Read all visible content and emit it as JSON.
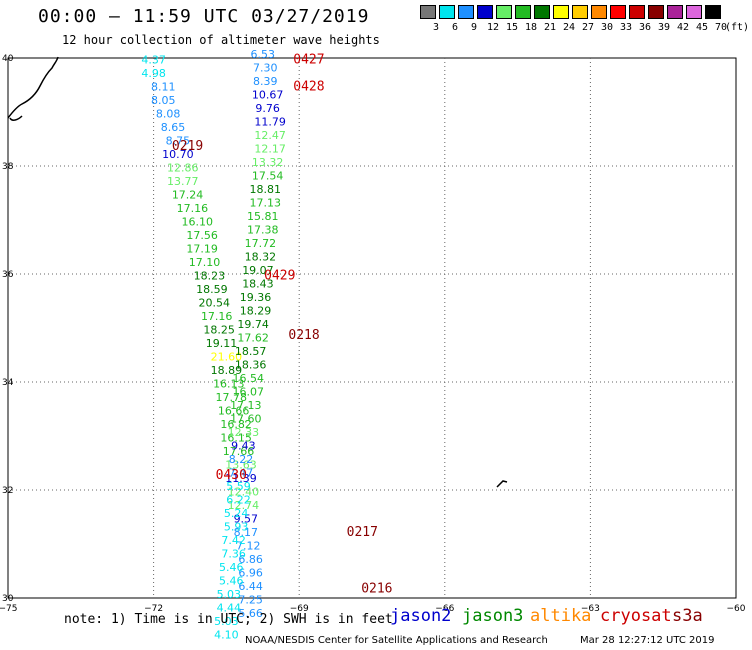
{
  "header": {
    "title": "00:00 – 11:59 UTC 03/27/2019",
    "subtitle": "12 hour collection of altimeter wave heights"
  },
  "color_scale": {
    "unit": "(ft)",
    "bins": [
      {
        "label": "3",
        "color": "#777777"
      },
      {
        "label": "6",
        "color": "#00e5ee"
      },
      {
        "label": "9",
        "color": "#1e90ff"
      },
      {
        "label": "12",
        "color": "#0000cd"
      },
      {
        "label": "15",
        "color": "#66ee66"
      },
      {
        "label": "18",
        "color": "#22bb22"
      },
      {
        "label": "21",
        "color": "#007700"
      },
      {
        "label": "24",
        "color": "#ffff00"
      },
      {
        "label": "27",
        "color": "#ffcc00"
      },
      {
        "label": "30",
        "color": "#ff8800"
      },
      {
        "label": "33",
        "color": "#ff0000"
      },
      {
        "label": "36",
        "color": "#cc0000"
      },
      {
        "label": "39",
        "color": "#880000"
      },
      {
        "label": "42",
        "color": "#aa2299"
      },
      {
        "label": "45",
        "color": "#dd66dd"
      },
      {
        "label": "70",
        "color": "#000000"
      }
    ]
  },
  "axes": {
    "lon_ticks": [
      "−75",
      "−72",
      "−69",
      "−66",
      "−63",
      "−60"
    ],
    "lat_ticks": [
      "40",
      "38",
      "36",
      "34",
      "32",
      "30"
    ],
    "lon_range": [
      -75,
      -60
    ],
    "lat_range": [
      30,
      40
    ]
  },
  "passes": [
    {
      "label": "0427",
      "color": "#cc0000",
      "lat": 39.9,
      "lon": -68.8
    },
    {
      "label": "0428",
      "color": "#cc0000",
      "lat": 39.4,
      "lon": -68.8
    },
    {
      "label": "0219",
      "color": "#880000",
      "lat": 38.3,
      "lon": -71.3
    },
    {
      "label": "0429",
      "color": "#cc0000",
      "lat": 35.9,
      "lon": -69.4
    },
    {
      "label": "0218",
      "color": "#880000",
      "lat": 34.8,
      "lon": -68.9
    },
    {
      "label": "0430",
      "color": "#cc0000",
      "lat": 32.2,
      "lon": -70.4
    },
    {
      "label": "0217",
      "color": "#880000",
      "lat": 31.15,
      "lon": -67.7
    },
    {
      "label": "0216",
      "color": "#880000",
      "lat": 30.1,
      "lon": -67.4
    }
  ],
  "tracks": [
    {
      "name": "A",
      "readings": [
        {
          "v": "4.37",
          "c": "#00e5ee",
          "lat": 39.9,
          "lon": -72.0
        },
        {
          "v": "4.98",
          "c": "#00e5ee",
          "lat": 39.65,
          "lon": -72.0
        },
        {
          "v": "8.11",
          "c": "#1e90ff",
          "lat": 39.4,
          "lon": -71.8
        },
        {
          "v": "8.05",
          "c": "#1e90ff",
          "lat": 39.15,
          "lon": -71.8
        },
        {
          "v": "8.08",
          "c": "#1e90ff",
          "lat": 38.9,
          "lon": -71.7
        },
        {
          "v": "8.65",
          "c": "#1e90ff",
          "lat": 38.65,
          "lon": -71.6
        },
        {
          "v": "8.75",
          "c": "#1e90ff",
          "lat": 38.4,
          "lon": -71.5
        },
        {
          "v": "10.70",
          "c": "#0000cd",
          "lat": 38.15,
          "lon": -71.5
        },
        {
          "v": "12.86",
          "c": "#66ee66",
          "lat": 37.9,
          "lon": -71.4
        },
        {
          "v": "13.77",
          "c": "#66ee66",
          "lat": 37.65,
          "lon": -71.4
        },
        {
          "v": "17.24",
          "c": "#22bb22",
          "lat": 37.4,
          "lon": -71.3
        },
        {
          "v": "17.16",
          "c": "#22bb22",
          "lat": 37.15,
          "lon": -71.2
        },
        {
          "v": "16.10",
          "c": "#22bb22",
          "lat": 36.9,
          "lon": -71.1
        },
        {
          "v": "17.56",
          "c": "#22bb22",
          "lat": 36.65,
          "lon": -71.0
        },
        {
          "v": "17.19",
          "c": "#22bb22",
          "lat": 36.4,
          "lon": -71.0
        },
        {
          "v": "17.10",
          "c": "#22bb22",
          "lat": 36.15,
          "lon": -70.95
        },
        {
          "v": "18.23",
          "c": "#007700",
          "lat": 35.9,
          "lon": -70.85
        },
        {
          "v": "18.59",
          "c": "#007700",
          "lat": 35.65,
          "lon": -70.8
        },
        {
          "v": "20.54",
          "c": "#007700",
          "lat": 35.4,
          "lon": -70.75
        },
        {
          "v": "17.16",
          "c": "#22bb22",
          "lat": 35.15,
          "lon": -70.7
        },
        {
          "v": "18.25",
          "c": "#007700",
          "lat": 34.9,
          "lon": -70.65
        },
        {
          "v": "19.11",
          "c": "#007700",
          "lat": 34.65,
          "lon": -70.6
        },
        {
          "v": "21.60",
          "c": "#ffff00",
          "lat": 34.4,
          "lon": -70.5
        },
        {
          "v": "18.89",
          "c": "#007700",
          "lat": 34.15,
          "lon": -70.5
        },
        {
          "v": "16.13",
          "c": "#22bb22",
          "lat": 33.9,
          "lon": -70.45
        },
        {
          "v": "17.78",
          "c": "#22bb22",
          "lat": 33.65,
          "lon": -70.4
        },
        {
          "v": "16.66",
          "c": "#22bb22",
          "lat": 33.4,
          "lon": -70.35
        },
        {
          "v": "16.82",
          "c": "#22bb22",
          "lat": 33.15,
          "lon": -70.3
        },
        {
          "v": "16.15",
          "c": "#22bb22",
          "lat": 32.9,
          "lon": -70.3
        },
        {
          "v": "17.66",
          "c": "#22bb22",
          "lat": 32.65,
          "lon": -70.25
        },
        {
          "v": "13.63",
          "c": "#66ee66",
          "lat": 32.4,
          "lon": -70.2
        },
        {
          "v": "11.39",
          "c": "#0000cd",
          "lat": 32.15,
          "lon": -70.2
        },
        {
          "v": "12.40",
          "c": "#66ee66",
          "lat": 31.9,
          "lon": -70.15
        },
        {
          "v": "12.74",
          "c": "#66ee66",
          "lat": 31.65,
          "lon": -70.15
        },
        {
          "v": "9.57",
          "c": "#0000cd",
          "lat": 31.4,
          "lon": -70.1
        },
        {
          "v": "8.17",
          "c": "#1e90ff",
          "lat": 31.15,
          "lon": -70.1
        },
        {
          "v": "7.12",
          "c": "#1e90ff",
          "lat": 30.9,
          "lon": -70.05
        },
        {
          "v": "6.86",
          "c": "#1e90ff",
          "lat": 30.65,
          "lon": -70.0
        },
        {
          "v": "6.96",
          "c": "#1e90ff",
          "lat": 30.4,
          "lon": -70.0
        },
        {
          "v": "6.44",
          "c": "#1e90ff",
          "lat": 30.15,
          "lon": -70.0
        },
        {
          "v": "7.25",
          "c": "#1e90ff",
          "lat": 29.9,
          "lon": -70.0
        },
        {
          "v": "5.66",
          "c": "#1e90ff",
          "lat": 29.65,
          "lon": -70.0
        }
      ]
    },
    {
      "name": "B",
      "readings": [
        {
          "v": "6.53",
          "c": "#1e90ff",
          "lat": 40.0,
          "lon": -69.75
        },
        {
          "v": "7.30",
          "c": "#1e90ff",
          "lat": 39.75,
          "lon": -69.7
        },
        {
          "v": "8.39",
          "c": "#1e90ff",
          "lat": 39.5,
          "lon": -69.7
        },
        {
          "v": "10.67",
          "c": "#0000cd",
          "lat": 39.25,
          "lon": -69.65
        },
        {
          "v": "9.76",
          "c": "#0000cd",
          "lat": 39.0,
          "lon": -69.65
        },
        {
          "v": "11.79",
          "c": "#0000cd",
          "lat": 38.75,
          "lon": -69.6
        },
        {
          "v": "12.47",
          "c": "#66ee66",
          "lat": 38.5,
          "lon": -69.6
        },
        {
          "v": "12.17",
          "c": "#66ee66",
          "lat": 38.25,
          "lon": -69.6
        },
        {
          "v": "13.32",
          "c": "#66ee66",
          "lat": 38.0,
          "lon": -69.65
        },
        {
          "v": "17.54",
          "c": "#22bb22",
          "lat": 37.75,
          "lon": -69.65
        },
        {
          "v": "18.81",
          "c": "#007700",
          "lat": 37.5,
          "lon": -69.7
        },
        {
          "v": "17.13",
          "c": "#22bb22",
          "lat": 37.25,
          "lon": -69.7
        },
        {
          "v": "15.81",
          "c": "#22bb22",
          "lat": 37.0,
          "lon": -69.75
        },
        {
          "v": "17.38",
          "c": "#22bb22",
          "lat": 36.75,
          "lon": -69.75
        },
        {
          "v": "17.72",
          "c": "#22bb22",
          "lat": 36.5,
          "lon": -69.8
        },
        {
          "v": "18.32",
          "c": "#007700",
          "lat": 36.25,
          "lon": -69.8
        },
        {
          "v": "19.07",
          "c": "#007700",
          "lat": 36.0,
          "lon": -69.85
        },
        {
          "v": "18.43",
          "c": "#007700",
          "lat": 35.75,
          "lon": -69.85
        },
        {
          "v": "19.36",
          "c": "#007700",
          "lat": 35.5,
          "lon": -69.9
        },
        {
          "v": "18.29",
          "c": "#007700",
          "lat": 35.25,
          "lon": -69.9
        },
        {
          "v": "19.74",
          "c": "#007700",
          "lat": 35.0,
          "lon": -69.95
        },
        {
          "v": "17.62",
          "c": "#22bb22",
          "lat": 34.75,
          "lon": -69.95
        },
        {
          "v": "18.57",
          "c": "#007700",
          "lat": 34.5,
          "lon": -70.0
        },
        {
          "v": "18.36",
          "c": "#007700",
          "lat": 34.25,
          "lon": -70.0
        },
        {
          "v": "16.54",
          "c": "#22bb22",
          "lat": 34.0,
          "lon": -70.05
        },
        {
          "v": "16.07",
          "c": "#22bb22",
          "lat": 33.75,
          "lon": -70.05
        },
        {
          "v": "17.13",
          "c": "#22bb22",
          "lat": 33.5,
          "lon": -70.1
        },
        {
          "v": "17.60",
          "c": "#22bb22",
          "lat": 33.25,
          "lon": -70.1
        },
        {
          "v": "12.33",
          "c": "#66ee66",
          "lat": 33.0,
          "lon": -70.15
        },
        {
          "v": "9.43",
          "c": "#0000cd",
          "lat": 32.75,
          "lon": -70.15
        },
        {
          "v": "8.22",
          "c": "#1e90ff",
          "lat": 32.5,
          "lon": -70.2
        },
        {
          "v": "7.47",
          "c": "#1e90ff",
          "lat": 32.25,
          "lon": -70.2
        },
        {
          "v": "5.59",
          "c": "#00e5ee",
          "lat": 32.0,
          "lon": -70.25
        },
        {
          "v": "6.22",
          "c": "#00e5ee",
          "lat": 31.75,
          "lon": -70.25
        },
        {
          "v": "5.24",
          "c": "#00e5ee",
          "lat": 31.5,
          "lon": -70.3
        },
        {
          "v": "5.93",
          "c": "#00e5ee",
          "lat": 31.25,
          "lon": -70.3
        },
        {
          "v": "7.42",
          "c": "#00e5ee",
          "lat": 31.0,
          "lon": -70.35
        },
        {
          "v": "7.36",
          "c": "#00e5ee",
          "lat": 30.75,
          "lon": -70.35
        },
        {
          "v": "5.46",
          "c": "#00e5ee",
          "lat": 30.5,
          "lon": -70.4
        },
        {
          "v": "5.46",
          "c": "#00e5ee",
          "lat": 30.25,
          "lon": -70.4
        },
        {
          "v": "5.03",
          "c": "#00e5ee",
          "lat": 30.0,
          "lon": -70.45
        },
        {
          "v": "4.44",
          "c": "#00e5ee",
          "lat": 29.75,
          "lon": -70.45
        },
        {
          "v": "5.03",
          "c": "#00e5ee",
          "lat": 29.5,
          "lon": -70.5
        },
        {
          "v": "4.10",
          "c": "#00e5ee",
          "lat": 29.25,
          "lon": -70.5
        }
      ]
    }
  ],
  "footer": {
    "note": "note: 1) Time is in UTC; 2) SWH is in feet",
    "satellites": [
      {
        "label": "jason2",
        "color": "#0000cc"
      },
      {
        "label": "jason3",
        "color": "#008800"
      },
      {
        "label": "altika",
        "color": "#ff8800"
      },
      {
        "label": "cryosat",
        "color": "#cc0000"
      },
      {
        "label": "s3a",
        "color": "#880000"
      }
    ],
    "credit": "NOAA/NESDIS Center for Satellite Applications and Research",
    "timestamp": "Mar 28 12:27:12 UTC 2019"
  }
}
